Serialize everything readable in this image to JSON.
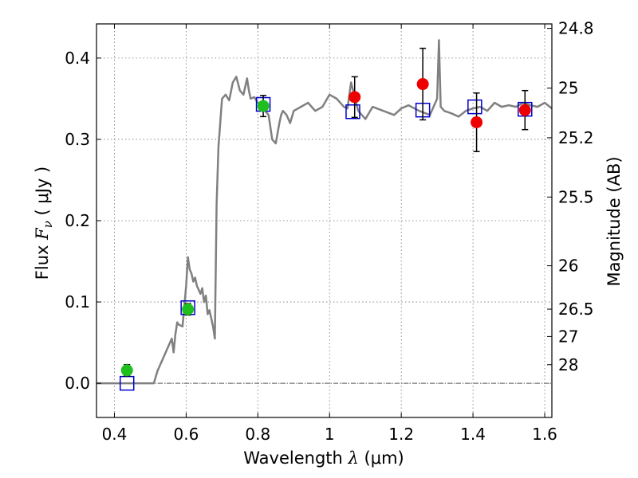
{
  "chart_data": {
    "type": "scatter",
    "xlabel_prefix": "Wavelength",
    "xlabel_symbol": "λ",
    "xlabel_unit": "(μm)",
    "ylabel_prefix": "Flux",
    "ylabel_symbol": "F",
    "ylabel_sub": "ν",
    "ylabel_unit": "( μJy )",
    "y2label": "Magnitude (AB)",
    "xlim": [
      0.35,
      1.62
    ],
    "ylim": [
      -0.042,
      0.442
    ],
    "grid": true,
    "x_ticks": [
      0.4,
      0.6,
      0.8,
      1.0,
      1.2,
      1.4,
      1.6
    ],
    "x_tick_labels": [
      "0.4",
      "0.6",
      "0.8",
      "1",
      "1.2",
      "1.4",
      "1.6"
    ],
    "y_ticks": [
      0.0,
      0.1,
      0.2,
      0.3,
      0.4
    ],
    "y_tick_labels": [
      "0.0",
      "0.1",
      "0.2",
      "0.3",
      "0.4"
    ],
    "mag_ticks": [
      {
        "value": 24.8,
        "label": "24.8"
      },
      {
        "value": 25.0,
        "label": "25"
      },
      {
        "value": 25.2,
        "label": "25.2"
      },
      {
        "value": 25.5,
        "label": "25.5"
      },
      {
        "value": 26.0,
        "label": "26"
      },
      {
        "value": 26.5,
        "label": "26.5"
      },
      {
        "value": 27.0,
        "label": "27"
      },
      {
        "value": 28.0,
        "label": "28"
      }
    ],
    "colors": {
      "model": "#808080",
      "green": "#1fbf1f",
      "red": "#ee0000",
      "blue": "#0000cc",
      "errorbar": "#000000",
      "zero_line": "#555555"
    },
    "series": [
      {
        "kind": "model",
        "x": [
          0.35,
          0.51,
          0.52,
          0.54,
          0.56,
          0.565,
          0.57,
          0.575,
          0.58,
          0.59,
          0.6,
          0.605,
          0.61,
          0.615,
          0.62,
          0.625,
          0.63,
          0.64,
          0.645,
          0.65,
          0.655,
          0.66,
          0.665,
          0.67,
          0.675,
          0.68,
          0.685,
          0.69,
          0.7,
          0.71,
          0.72,
          0.73,
          0.74,
          0.75,
          0.76,
          0.77,
          0.775,
          0.78,
          0.79,
          0.8,
          0.81,
          0.82,
          0.83,
          0.84,
          0.85,
          0.86,
          0.865,
          0.87,
          0.88,
          0.89,
          0.9,
          0.92,
          0.94,
          0.96,
          0.98,
          1.0,
          1.02,
          1.04,
          1.05,
          1.06,
          1.08,
          1.1,
          1.12,
          1.15,
          1.18,
          1.2,
          1.22,
          1.25,
          1.28,
          1.29,
          1.3,
          1.305,
          1.31,
          1.32,
          1.34,
          1.36,
          1.38,
          1.4,
          1.42,
          1.44,
          1.46,
          1.48,
          1.5,
          1.52,
          1.54,
          1.56,
          1.58,
          1.6,
          1.62
        ],
        "y": [
          0.0,
          0.0,
          0.015,
          0.035,
          0.055,
          0.038,
          0.06,
          0.075,
          0.072,
          0.07,
          0.12,
          0.155,
          0.14,
          0.135,
          0.125,
          0.13,
          0.12,
          0.11,
          0.117,
          0.1,
          0.108,
          0.085,
          0.09,
          0.08,
          0.07,
          0.055,
          0.22,
          0.29,
          0.35,
          0.355,
          0.348,
          0.37,
          0.377,
          0.36,
          0.355,
          0.375,
          0.36,
          0.35,
          0.352,
          0.345,
          0.34,
          0.335,
          0.33,
          0.3,
          0.295,
          0.32,
          0.33,
          0.335,
          0.33,
          0.32,
          0.335,
          0.34,
          0.345,
          0.335,
          0.34,
          0.355,
          0.35,
          0.34,
          0.338,
          0.37,
          0.335,
          0.325,
          0.34,
          0.335,
          0.33,
          0.338,
          0.342,
          0.335,
          0.33,
          0.34,
          0.35,
          0.422,
          0.34,
          0.335,
          0.332,
          0.328,
          0.335,
          0.338,
          0.34,
          0.335,
          0.345,
          0.34,
          0.342,
          0.34,
          0.345,
          0.342,
          0.34,
          0.345,
          0.338
        ]
      },
      {
        "kind": "green",
        "x": [
          0.435,
          0.605,
          0.815
        ],
        "y": [
          0.016,
          0.091,
          0.341
        ],
        "err": [
          0.007,
          0.007,
          0.013
        ]
      },
      {
        "kind": "red",
        "x": [
          1.07,
          1.26,
          1.41,
          1.545
        ],
        "y": [
          0.352,
          0.368,
          0.321,
          0.336
        ],
        "err": [
          0.025,
          0.044,
          0.036,
          0.024
        ]
      },
      {
        "kind": "blue",
        "x": [
          0.435,
          0.605,
          0.815,
          1.065,
          1.26,
          1.405,
          1.545
        ],
        "y": [
          0.0,
          0.093,
          0.343,
          0.334,
          0.336,
          0.34,
          0.337
        ]
      }
    ]
  }
}
